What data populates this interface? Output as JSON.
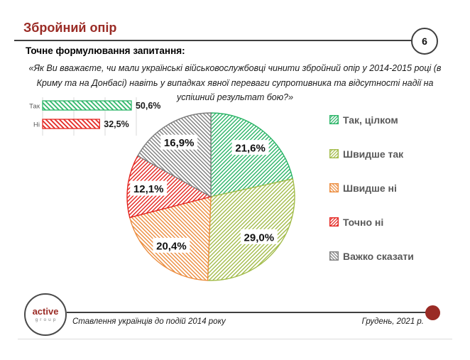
{
  "slide": {
    "title": "Збройний опір",
    "page_number": "6",
    "question_label": "Точне формулювання запитання:",
    "question_text": "«Як Ви вважаєте, чи мали українські військовослужбовці чинити збройний опір у 2014-2015 році (в Криму та на Донбасі) навіть у випадках явної переваги супротивника та відсутності надії на успішний результат бою?»"
  },
  "colors": {
    "accent_red": "#9A2B25",
    "rule_gray": "#3F3F3F",
    "label_gray": "#595959",
    "grid_gray": "#D9D9D9"
  },
  "chart_data": [
    {
      "type": "bar",
      "orientation": "horizontal",
      "categories": [
        "Так",
        "Ні"
      ],
      "values": [
        50.6,
        32.5
      ],
      "value_labels": [
        "50,6%",
        "32,5%"
      ],
      "colors": [
        "#2CB568",
        "#E42520"
      ],
      "hatch_angles": [
        45,
        45
      ],
      "xlim": [
        0,
        60
      ],
      "grid": true,
      "legend_position": "none"
    },
    {
      "type": "pie",
      "categories": [
        "Так, цілком",
        "Швидше так",
        "Швидше ні",
        "Точно ні",
        "Важко сказати"
      ],
      "values": [
        21.6,
        29.0,
        20.4,
        12.1,
        16.9
      ],
      "value_labels": [
        "21,6%",
        "29,0%",
        "20,4%",
        "12,1%",
        "16,9%"
      ],
      "colors": [
        "#2CB568",
        "#A3BC4B",
        "#EC8D3F",
        "#E42520",
        "#7F7F7F"
      ],
      "hatch_angles": [
        -45,
        -45,
        45,
        -45,
        45
      ],
      "start_angle_deg": 0,
      "direction": "clockwise",
      "legend_position": "right"
    }
  ],
  "footer": {
    "logo_line1": "active",
    "logo_line2": "group",
    "caption_left": "Ставлення українців до подій 2014 року",
    "caption_right": "Грудень, 2021 р."
  }
}
